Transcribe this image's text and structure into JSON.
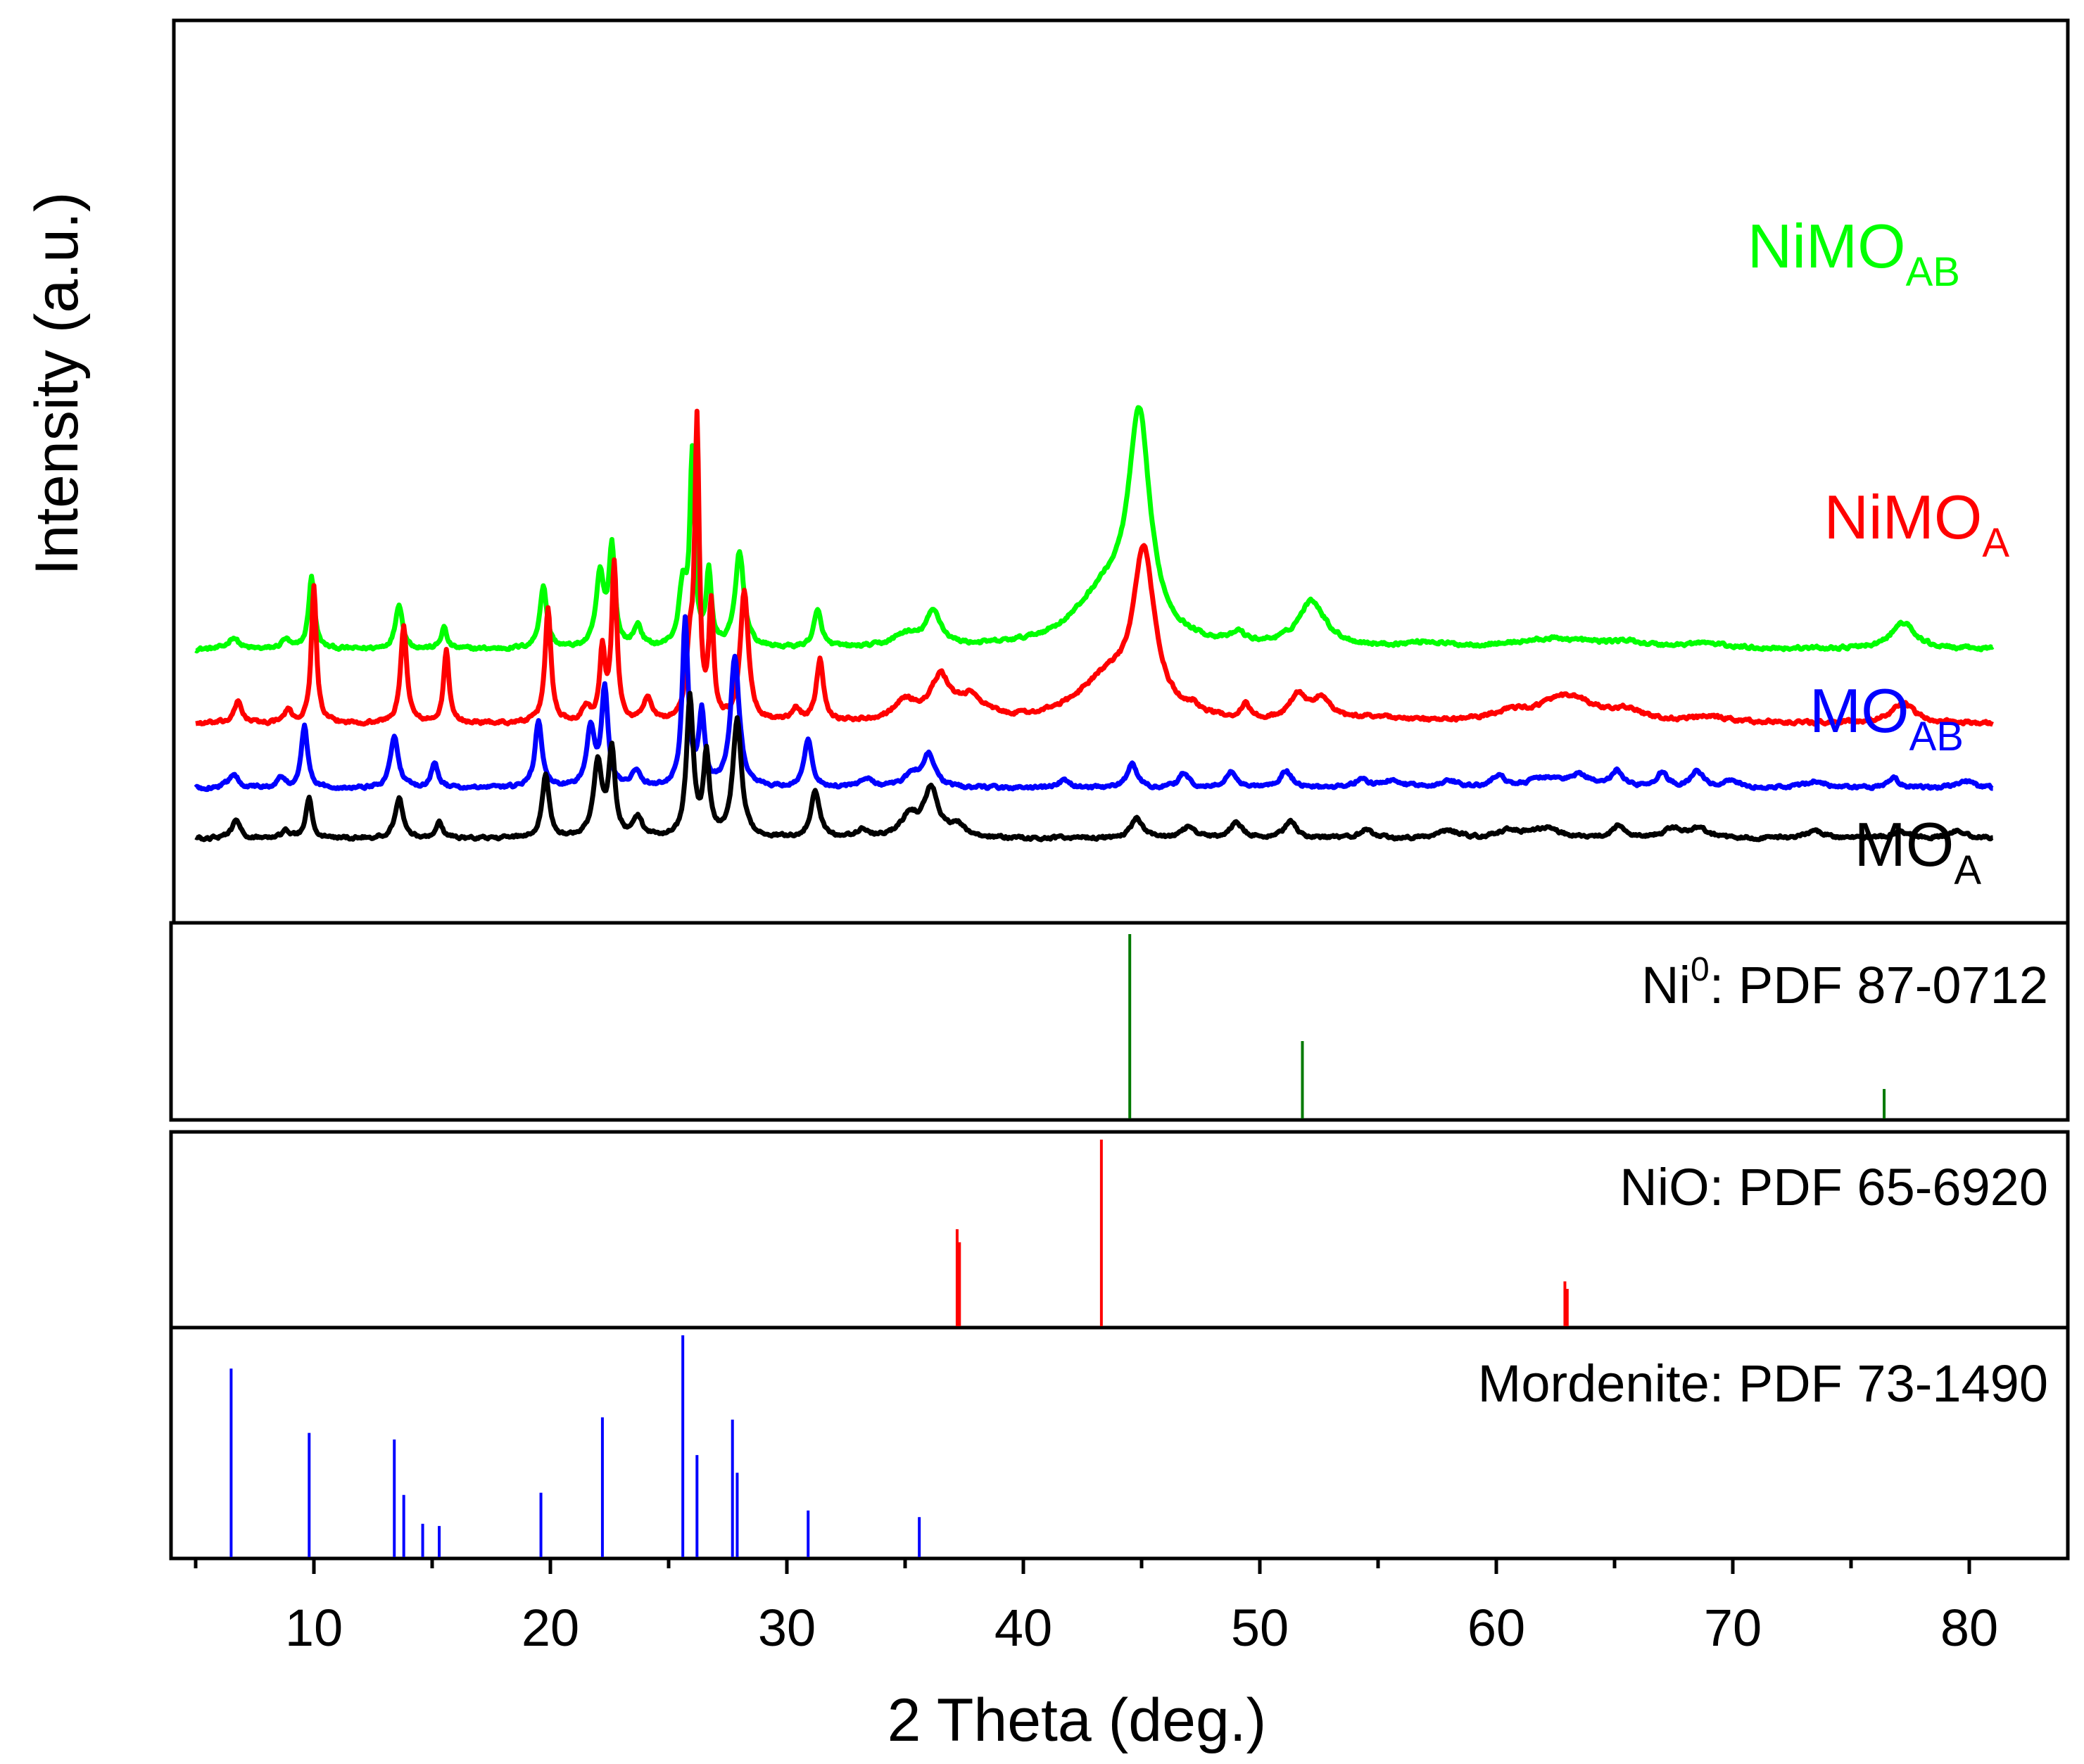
{
  "chart_data": {
    "type": "line",
    "title": "",
    "xlabel": "2 Theta (deg.)",
    "ylabel": "Intensity (a.u.)",
    "xlim": [
      4,
      84
    ],
    "xticks": [
      10,
      20,
      30,
      40,
      50,
      60,
      70,
      80
    ],
    "x_range_of_series": [
      5,
      81
    ],
    "grid": false,
    "legend": "inline labels right side",
    "series": [
      {
        "id": "nimo_ab",
        "name_main": "NiMO",
        "name_sub": "AB",
        "color": "#00ff00",
        "baseline": 0.58,
        "noise": 0.013,
        "peaks": [
          [
            6.6,
            0.05,
            0.25
          ],
          [
            8.8,
            0.04,
            0.2
          ],
          [
            9.9,
            0.3,
            0.15
          ],
          [
            13.6,
            0.19,
            0.18
          ],
          [
            15.5,
            0.09,
            0.14
          ],
          [
            19.7,
            0.26,
            0.18
          ],
          [
            22.1,
            0.3,
            0.2
          ],
          [
            22.6,
            0.41,
            0.15
          ],
          [
            23.7,
            0.09,
            0.2
          ],
          [
            25.6,
            0.25,
            0.2
          ],
          [
            26.0,
            0.78,
            0.12
          ],
          [
            26.7,
            0.31,
            0.13
          ],
          [
            28.0,
            0.4,
            0.22
          ],
          [
            31.3,
            0.15,
            0.2
          ],
          [
            35.0,
            0.05,
            0.6
          ],
          [
            36.2,
            0.14,
            0.4
          ],
          [
            44.9,
            0.88,
            0.55
          ],
          [
            43.5,
            0.22,
            1.6
          ],
          [
            49.1,
            0.04,
            0.3
          ],
          [
            52.2,
            0.19,
            0.7
          ],
          [
            57.0,
            0.02,
            1.0
          ],
          [
            62.5,
            0.04,
            2.2
          ],
          [
            65.5,
            0.02,
            1.0
          ],
          [
            68.8,
            0.02,
            1.0
          ],
          [
            77.2,
            0.11,
            0.6
          ]
        ]
      },
      {
        "id": "nimo_a",
        "name_main": "NiMO",
        "name_sub": "A",
        "color": "#ff0000",
        "baseline": 0.27,
        "noise": 0.013,
        "peaks": [
          [
            6.8,
            0.09,
            0.2
          ],
          [
            8.9,
            0.05,
            0.2
          ],
          [
            10.0,
            0.57,
            0.13
          ],
          [
            13.8,
            0.4,
            0.16
          ],
          [
            15.6,
            0.31,
            0.13
          ],
          [
            19.9,
            0.48,
            0.15
          ],
          [
            21.5,
            0.06,
            0.2
          ],
          [
            22.2,
            0.3,
            0.14
          ],
          [
            22.7,
            0.66,
            0.13
          ],
          [
            24.1,
            0.1,
            0.2
          ],
          [
            25.9,
            0.28,
            0.18
          ],
          [
            26.2,
            1.21,
            0.11
          ],
          [
            26.8,
            0.47,
            0.12
          ],
          [
            28.2,
            0.55,
            0.2
          ],
          [
            30.4,
            0.05,
            0.2
          ],
          [
            31.4,
            0.26,
            0.18
          ],
          [
            35.0,
            0.08,
            0.6
          ],
          [
            36.5,
            0.17,
            0.5
          ],
          [
            37.8,
            0.09,
            0.7
          ],
          [
            45.1,
            0.66,
            0.55
          ],
          [
            43.5,
            0.17,
            1.5
          ],
          [
            47.2,
            0.03,
            0.3
          ],
          [
            49.4,
            0.06,
            0.2
          ],
          [
            51.6,
            0.1,
            0.4
          ],
          [
            52.6,
            0.09,
            0.5
          ],
          [
            55.0,
            0.02,
            1.0
          ],
          [
            60.5,
            0.03,
            1.0
          ],
          [
            63.0,
            0.11,
            1.5
          ],
          [
            65.6,
            0.04,
            0.6
          ],
          [
            69.0,
            0.02,
            1.0
          ],
          [
            77.2,
            0.08,
            0.6
          ]
        ]
      },
      {
        "id": "mo_ab",
        "name_main": "MO",
        "name_sub": "AB",
        "color": "#0000ff",
        "baseline": 0.0,
        "noise": 0.012,
        "peaks": [
          [
            6.6,
            0.06,
            0.25
          ],
          [
            8.6,
            0.04,
            0.2
          ],
          [
            9.6,
            0.26,
            0.16
          ],
          [
            13.4,
            0.22,
            0.2
          ],
          [
            15.1,
            0.11,
            0.16
          ],
          [
            19.5,
            0.28,
            0.18
          ],
          [
            21.7,
            0.25,
            0.2
          ],
          [
            22.3,
            0.41,
            0.16
          ],
          [
            23.6,
            0.07,
            0.22
          ],
          [
            25.7,
            0.69,
            0.15
          ],
          [
            26.4,
            0.3,
            0.15
          ],
          [
            27.8,
            0.55,
            0.22
          ],
          [
            30.9,
            0.2,
            0.2
          ],
          [
            33.4,
            0.04,
            0.3
          ],
          [
            35.3,
            0.05,
            0.4
          ],
          [
            36.0,
            0.14,
            0.3
          ],
          [
            41.7,
            0.03,
            0.3
          ],
          [
            44.6,
            0.1,
            0.25
          ],
          [
            46.8,
            0.06,
            0.25
          ],
          [
            48.8,
            0.07,
            0.25
          ],
          [
            51.1,
            0.07,
            0.3
          ],
          [
            54.3,
            0.04,
            0.3
          ],
          [
            55.6,
            0.03,
            0.5
          ],
          [
            58.0,
            0.03,
            0.5
          ],
          [
            60.1,
            0.05,
            0.3
          ],
          [
            62.0,
            0.04,
            0.8
          ],
          [
            63.5,
            0.05,
            0.5
          ],
          [
            65.1,
            0.07,
            0.3
          ],
          [
            67.0,
            0.06,
            0.3
          ],
          [
            68.5,
            0.07,
            0.3
          ],
          [
            70.0,
            0.03,
            0.4
          ],
          [
            73.5,
            0.03,
            0.5
          ],
          [
            76.8,
            0.04,
            0.3
          ],
          [
            79.8,
            0.03,
            0.4
          ]
        ]
      },
      {
        "id": "mo_a",
        "name_main": "MO",
        "name_sub": "A",
        "color": "#000000",
        "baseline": -0.21,
        "noise": 0.012,
        "peaks": [
          [
            6.7,
            0.07,
            0.22
          ],
          [
            8.8,
            0.03,
            0.2
          ],
          [
            9.8,
            0.17,
            0.16
          ],
          [
            13.6,
            0.17,
            0.2
          ],
          [
            15.3,
            0.07,
            0.16
          ],
          [
            19.8,
            0.26,
            0.18
          ],
          [
            22.0,
            0.31,
            0.22
          ],
          [
            22.6,
            0.36,
            0.16
          ],
          [
            23.7,
            0.08,
            0.22
          ],
          [
            25.9,
            0.58,
            0.17
          ],
          [
            26.6,
            0.33,
            0.15
          ],
          [
            27.9,
            0.49,
            0.22
          ],
          [
            31.2,
            0.19,
            0.22
          ],
          [
            33.2,
            0.03,
            0.3
          ],
          [
            35.2,
            0.09,
            0.45
          ],
          [
            36.1,
            0.2,
            0.35
          ],
          [
            37.2,
            0.05,
            0.4
          ],
          [
            44.8,
            0.08,
            0.3
          ],
          [
            47.0,
            0.05,
            0.3
          ],
          [
            49.0,
            0.07,
            0.3
          ],
          [
            51.3,
            0.07,
            0.3
          ],
          [
            54.5,
            0.04,
            0.3
          ],
          [
            58.0,
            0.03,
            0.5
          ],
          [
            60.5,
            0.03,
            0.5
          ],
          [
            62.0,
            0.04,
            0.8
          ],
          [
            65.2,
            0.05,
            0.3
          ],
          [
            67.5,
            0.04,
            0.5
          ],
          [
            68.6,
            0.04,
            0.4
          ],
          [
            73.5,
            0.03,
            0.5
          ],
          [
            77.0,
            0.03,
            0.4
          ],
          [
            79.5,
            0.03,
            0.4
          ]
        ]
      }
    ],
    "references": [
      {
        "id": "ni0",
        "label_main": "Ni",
        "label_sup": "0",
        "label_rest": ": PDF 87-0712",
        "color": "#007a00",
        "lines": [
          [
            44.5,
            1.0
          ],
          [
            51.8,
            0.42
          ],
          [
            76.4,
            0.16
          ]
        ]
      },
      {
        "id": "nio",
        "label_main": "NiO: PDF 65-6920",
        "label_sup": "",
        "label_rest": "",
        "color": "#ff0000",
        "lines": [
          [
            37.2,
            0.52
          ],
          [
            37.3,
            0.45
          ],
          [
            43.3,
            1.0
          ],
          [
            62.9,
            0.24
          ],
          [
            63.0,
            0.2
          ]
        ]
      },
      {
        "id": "mordenite",
        "label_main": "Mordenite: PDF 73-1490",
        "label_sup": "",
        "label_rest": "",
        "color": "#0000ff",
        "lines": [
          [
            6.5,
            0.85
          ],
          [
            9.8,
            0.56
          ],
          [
            13.4,
            0.53
          ],
          [
            13.8,
            0.28
          ],
          [
            14.6,
            0.15
          ],
          [
            15.3,
            0.14
          ],
          [
            19.6,
            0.29
          ],
          [
            22.2,
            0.63
          ],
          [
            25.6,
            1.0
          ],
          [
            26.2,
            0.46
          ],
          [
            27.7,
            0.62
          ],
          [
            27.9,
            0.38
          ],
          [
            30.9,
            0.21
          ],
          [
            35.6,
            0.18
          ]
        ]
      }
    ]
  }
}
